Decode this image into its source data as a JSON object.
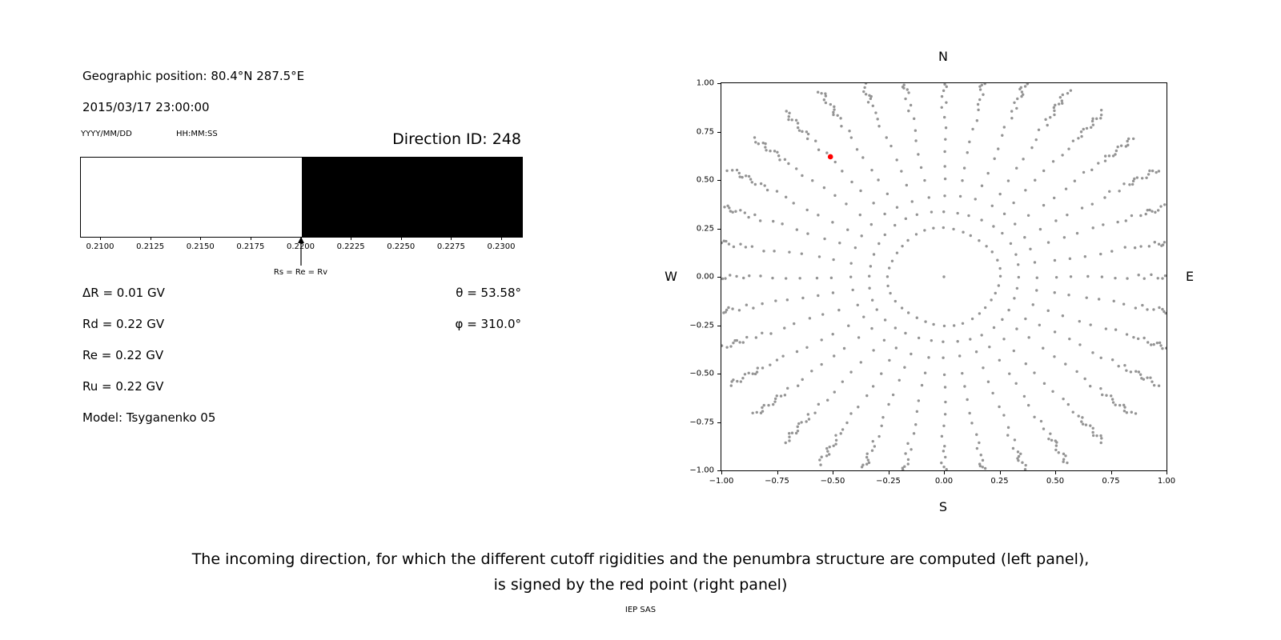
{
  "header": {
    "geographic_position": "Geographic position: 80.4°N 287.5°E",
    "datetime": "2015/03/17 23:00:00",
    "date_format_label": "YYYY/MM/DD",
    "time_format_label": "HH:MM:SS",
    "direction_id": "Direction ID: 248"
  },
  "parameters": {
    "delta_r": "ΔR = 0.01 GV",
    "rd": "Rd = 0.22 GV",
    "re": "Re = 0.22 GV",
    "ru": "Ru = 0.22 GV",
    "model": "Model: Tsyganenko 05",
    "theta": "θ = 53.58°",
    "phi": "φ = 310.0°"
  },
  "caption": {
    "line1": "The incoming direction, for which the different cutoff rigidities and the penumbra structure are computed (left panel),",
    "line2": "is signed by the red point (right panel)",
    "credit": "IEP SAS"
  },
  "chart_data": [
    {
      "type": "area",
      "name": "penumbra-structure",
      "description": "Penumbra structure: allowed (white) vs forbidden (black) rigidity bands in GV",
      "xlim": [
        0.209,
        0.231
      ],
      "bands": [
        {
          "from": 0.209,
          "to": 0.22,
          "state": "allowed",
          "color": "#ffffff"
        },
        {
          "from": 0.22,
          "to": 0.231,
          "state": "forbidden",
          "color": "#000000"
        }
      ],
      "x_ticks": [
        {
          "value": 0.21,
          "label": "0.2100"
        },
        {
          "value": 0.2125,
          "label": "0.2125"
        },
        {
          "value": 0.215,
          "label": "0.2150"
        },
        {
          "value": 0.2175,
          "label": "0.2175"
        },
        {
          "value": 0.22,
          "label": "0.2200"
        },
        {
          "value": 0.2225,
          "label": "0.2225"
        },
        {
          "value": 0.225,
          "label": "0.2250"
        },
        {
          "value": 0.2275,
          "label": "0.2275"
        },
        {
          "value": 0.23,
          "label": "0.2300"
        }
      ],
      "annotation": {
        "x": 0.22,
        "label": "Rs = Re = Rv"
      }
    },
    {
      "type": "scatter",
      "name": "incoming-directions",
      "description": "Grid of incoming directions (gray dots, radial spokes every 10 degrees); selected direction marked by red point",
      "xlim": [
        -1,
        1
      ],
      "ylim": [
        -1,
        1
      ],
      "compass": {
        "top": "N",
        "bottom": "S",
        "left": "W",
        "right": "E"
      },
      "x_ticks": [
        {
          "value": -1,
          "label": "−1.00"
        },
        {
          "value": -0.75,
          "label": "−0.75"
        },
        {
          "value": -0.5,
          "label": "−0.50"
        },
        {
          "value": -0.25,
          "label": "−0.25"
        },
        {
          "value": 0,
          "label": "0.00"
        },
        {
          "value": 0.25,
          "label": "0.25"
        },
        {
          "value": 0.5,
          "label": "0.50"
        },
        {
          "value": 0.75,
          "label": "0.75"
        },
        {
          "value": 1,
          "label": "1.00"
        }
      ],
      "y_ticks": [
        {
          "value": 1,
          "label": "1.00"
        },
        {
          "value": 0.75,
          "label": "0.75"
        },
        {
          "value": 0.5,
          "label": "0.50"
        },
        {
          "value": 0.25,
          "label": "0.25"
        },
        {
          "value": 0,
          "label": "0.00"
        },
        {
          "value": -0.25,
          "label": "−0.25"
        },
        {
          "value": -0.5,
          "label": "−0.50"
        },
        {
          "value": -0.75,
          "label": "−0.75"
        },
        {
          "value": -1,
          "label": "−1.00"
        }
      ],
      "grid_dots": {
        "color": "#949494",
        "azimuth_step_deg": 10,
        "radii": [
          0.25,
          0.34,
          0.42,
          0.5,
          0.575,
          0.645,
          0.71,
          0.77,
          0.825,
          0.87,
          0.905,
          0.935,
          0.958,
          0.976,
          0.99,
          1.0,
          1.012,
          1.026,
          1.04,
          1.055,
          1.07,
          1.086,
          1.1,
          1.115
        ],
        "clip": 1.0,
        "center_dot": true,
        "jitter_angle_rad": 0.012,
        "jitter_radius": 0.006
      },
      "red_point": {
        "x": -0.51,
        "y": 0.62,
        "color": "#ff0000"
      }
    }
  ]
}
